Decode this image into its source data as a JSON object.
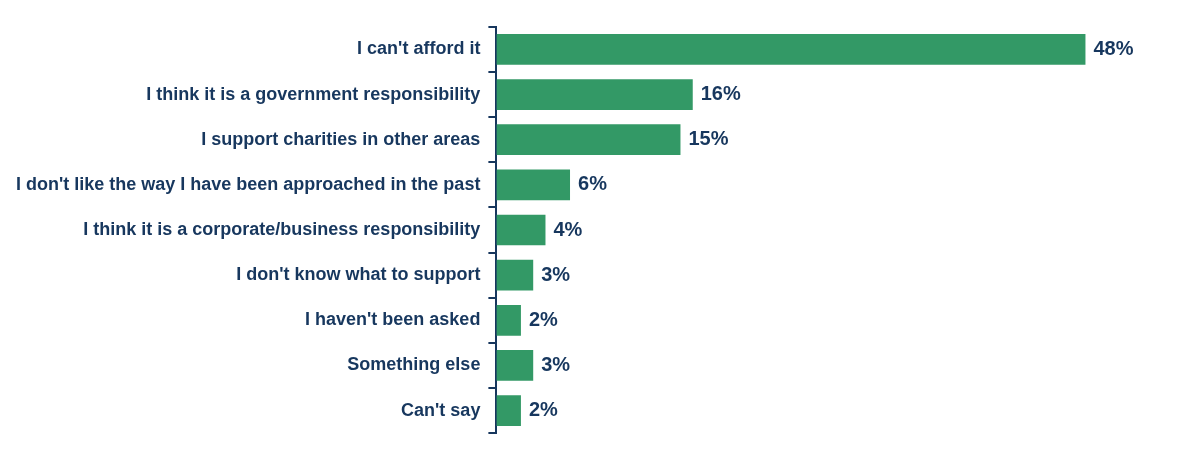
{
  "chart_data": {
    "type": "bar",
    "orientation": "horizontal",
    "categories": [
      "I can't afford it",
      "I think it is a government responsibility",
      "I support charities in other areas",
      "I don't like the way I have been approached in the past",
      "I think it is a corporate/business responsibility",
      "I don't know what to support",
      "I haven't been asked",
      "Something else",
      "Can't say"
    ],
    "values": [
      48,
      16,
      15,
      6,
      4,
      3,
      2,
      3,
      2
    ],
    "value_labels": [
      "48%",
      "16%",
      "15%",
      "6%",
      "4%",
      "3%",
      "2%",
      "3%",
      "2%"
    ],
    "color": "#339966",
    "legend": false
  }
}
